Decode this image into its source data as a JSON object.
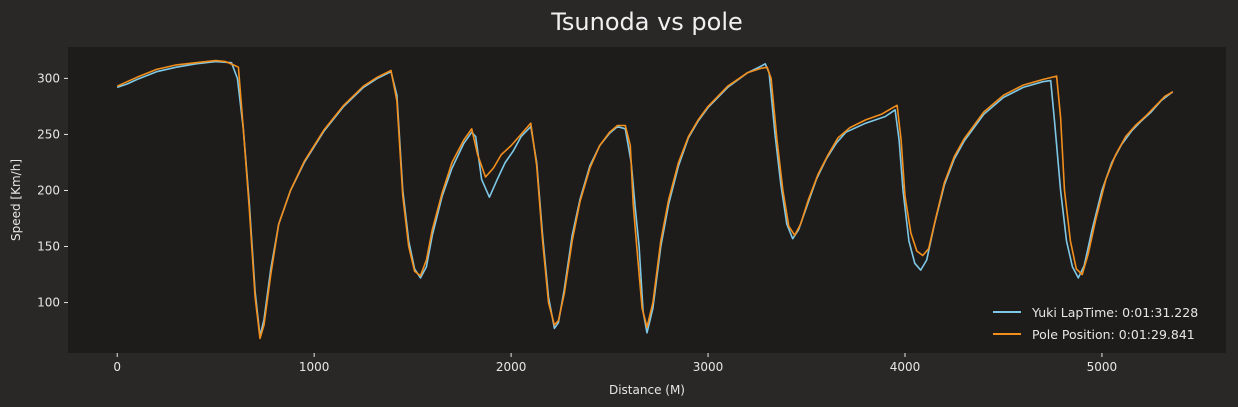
{
  "colors": {
    "figure_bg": "#2a2727",
    "plot_bg": "#1e1c1b",
    "text": "#e6e6e6",
    "yuki": "#7ec8e6",
    "pole": "#f28e1c"
  },
  "chart_data": {
    "type": "line",
    "title": "Tsunoda vs pole",
    "xlabel": "Distance (M)",
    "ylabel": "Speed [Km/h]",
    "xlim": [
      -250,
      5630
    ],
    "ylim": [
      55,
      328
    ],
    "xticks": [
      0,
      1000,
      2000,
      3000,
      4000,
      5000
    ],
    "yticks": [
      100,
      150,
      200,
      250,
      300
    ],
    "grid": false,
    "legend_position": "lower-right",
    "series": [
      {
        "name": "Yuki LapTime: 0:01:31.228",
        "color_key": "yuki",
        "points": [
          [
            0,
            292
          ],
          [
            50,
            295
          ],
          [
            100,
            299
          ],
          [
            200,
            306
          ],
          [
            300,
            310
          ],
          [
            400,
            313
          ],
          [
            500,
            315
          ],
          [
            580,
            314
          ],
          [
            610,
            300
          ],
          [
            640,
            255
          ],
          [
            670,
            190
          ],
          [
            700,
            110
          ],
          [
            725,
            70
          ],
          [
            745,
            85
          ],
          [
            780,
            130
          ],
          [
            820,
            170
          ],
          [
            880,
            200
          ],
          [
            950,
            225
          ],
          [
            1050,
            253
          ],
          [
            1150,
            275
          ],
          [
            1250,
            292
          ],
          [
            1320,
            300
          ],
          [
            1390,
            306
          ],
          [
            1420,
            285
          ],
          [
            1450,
            200
          ],
          [
            1480,
            155
          ],
          [
            1510,
            130
          ],
          [
            1540,
            122
          ],
          [
            1570,
            132
          ],
          [
            1600,
            160
          ],
          [
            1650,
            195
          ],
          [
            1700,
            220
          ],
          [
            1760,
            242
          ],
          [
            1800,
            252
          ],
          [
            1820,
            248
          ],
          [
            1850,
            210
          ],
          [
            1890,
            194
          ],
          [
            1930,
            210
          ],
          [
            1970,
            225
          ],
          [
            2010,
            235
          ],
          [
            2050,
            248
          ],
          [
            2100,
            257
          ],
          [
            2130,
            225
          ],
          [
            2160,
            160
          ],
          [
            2190,
            105
          ],
          [
            2220,
            77
          ],
          [
            2240,
            82
          ],
          [
            2270,
            112
          ],
          [
            2310,
            160
          ],
          [
            2350,
            192
          ],
          [
            2400,
            222
          ],
          [
            2450,
            240
          ],
          [
            2500,
            251
          ],
          [
            2540,
            257
          ],
          [
            2580,
            255
          ],
          [
            2610,
            225
          ],
          [
            2630,
            185
          ],
          [
            2650,
            150
          ],
          [
            2670,
            92
          ],
          [
            2690,
            73
          ],
          [
            2720,
            95
          ],
          [
            2760,
            150
          ],
          [
            2800,
            188
          ],
          [
            2850,
            222
          ],
          [
            2900,
            247
          ],
          [
            2950,
            262
          ],
          [
            3000,
            274
          ],
          [
            3100,
            292
          ],
          [
            3200,
            305
          ],
          [
            3270,
            311
          ],
          [
            3290,
            313
          ],
          [
            3310,
            305
          ],
          [
            3340,
            250
          ],
          [
            3370,
            205
          ],
          [
            3400,
            170
          ],
          [
            3430,
            157
          ],
          [
            3460,
            165
          ],
          [
            3500,
            185
          ],
          [
            3550,
            210
          ],
          [
            3600,
            228
          ],
          [
            3650,
            242
          ],
          [
            3700,
            252
          ],
          [
            3800,
            260
          ],
          [
            3900,
            266
          ],
          [
            3950,
            272
          ],
          [
            3970,
            245
          ],
          [
            3990,
            200
          ],
          [
            4020,
            155
          ],
          [
            4050,
            135
          ],
          [
            4080,
            129
          ],
          [
            4110,
            138
          ],
          [
            4150,
            170
          ],
          [
            4200,
            205
          ],
          [
            4250,
            228
          ],
          [
            4300,
            244
          ],
          [
            4400,
            268
          ],
          [
            4500,
            283
          ],
          [
            4600,
            292
          ],
          [
            4700,
            297
          ],
          [
            4740,
            298
          ],
          [
            4760,
            260
          ],
          [
            4790,
            200
          ],
          [
            4820,
            155
          ],
          [
            4850,
            132
          ],
          [
            4880,
            122
          ],
          [
            4910,
            133
          ],
          [
            4950,
            165
          ],
          [
            5000,
            200
          ],
          [
            5050,
            225
          ],
          [
            5100,
            241
          ],
          [
            5150,
            253
          ],
          [
            5200,
            262
          ],
          [
            5250,
            270
          ],
          [
            5300,
            280
          ],
          [
            5360,
            288
          ]
        ]
      },
      {
        "name": "Pole Position: 0:01:29.841",
        "color_key": "pole",
        "points": [
          [
            0,
            293
          ],
          [
            50,
            297
          ],
          [
            100,
            301
          ],
          [
            200,
            308
          ],
          [
            300,
            312
          ],
          [
            400,
            314
          ],
          [
            500,
            316
          ],
          [
            550,
            315
          ],
          [
            590,
            312
          ],
          [
            615,
            310
          ],
          [
            640,
            255
          ],
          [
            670,
            185
          ],
          [
            700,
            105
          ],
          [
            725,
            68
          ],
          [
            745,
            80
          ],
          [
            780,
            125
          ],
          [
            820,
            170
          ],
          [
            880,
            200
          ],
          [
            950,
            226
          ],
          [
            1050,
            254
          ],
          [
            1150,
            276
          ],
          [
            1250,
            293
          ],
          [
            1320,
            301
          ],
          [
            1390,
            307
          ],
          [
            1420,
            280
          ],
          [
            1450,
            195
          ],
          [
            1480,
            150
          ],
          [
            1510,
            128
          ],
          [
            1540,
            124
          ],
          [
            1570,
            138
          ],
          [
            1600,
            165
          ],
          [
            1650,
            198
          ],
          [
            1700,
            225
          ],
          [
            1760,
            245
          ],
          [
            1800,
            255
          ],
          [
            1830,
            232
          ],
          [
            1870,
            212
          ],
          [
            1910,
            220
          ],
          [
            1950,
            232
          ],
          [
            2000,
            240
          ],
          [
            2050,
            250
          ],
          [
            2100,
            260
          ],
          [
            2130,
            222
          ],
          [
            2160,
            155
          ],
          [
            2190,
            100
          ],
          [
            2220,
            80
          ],
          [
            2240,
            84
          ],
          [
            2270,
            108
          ],
          [
            2310,
            155
          ],
          [
            2350,
            190
          ],
          [
            2400,
            220
          ],
          [
            2450,
            240
          ],
          [
            2500,
            252
          ],
          [
            2540,
            258
          ],
          [
            2580,
            258
          ],
          [
            2605,
            240
          ],
          [
            2620,
            188
          ],
          [
            2640,
            145
          ],
          [
            2665,
            95
          ],
          [
            2690,
            78
          ],
          [
            2720,
            100
          ],
          [
            2760,
            155
          ],
          [
            2800,
            192
          ],
          [
            2850,
            225
          ],
          [
            2900,
            248
          ],
          [
            2950,
            263
          ],
          [
            3000,
            275
          ],
          [
            3100,
            293
          ],
          [
            3200,
            305
          ],
          [
            3270,
            309
          ],
          [
            3300,
            310
          ],
          [
            3320,
            300
          ],
          [
            3350,
            245
          ],
          [
            3380,
            200
          ],
          [
            3410,
            168
          ],
          [
            3440,
            160
          ],
          [
            3470,
            170
          ],
          [
            3510,
            192
          ],
          [
            3560,
            215
          ],
          [
            3610,
            232
          ],
          [
            3660,
            247
          ],
          [
            3720,
            256
          ],
          [
            3800,
            263
          ],
          [
            3880,
            268
          ],
          [
            3930,
            273
          ],
          [
            3960,
            276
          ],
          [
            3980,
            245
          ],
          [
            4000,
            195
          ],
          [
            4030,
            162
          ],
          [
            4060,
            146
          ],
          [
            4090,
            142
          ],
          [
            4120,
            148
          ],
          [
            4160,
            178
          ],
          [
            4200,
            207
          ],
          [
            4250,
            230
          ],
          [
            4300,
            246
          ],
          [
            4400,
            270
          ],
          [
            4500,
            285
          ],
          [
            4600,
            294
          ],
          [
            4700,
            299
          ],
          [
            4770,
            302
          ],
          [
            4790,
            265
          ],
          [
            4810,
            200
          ],
          [
            4840,
            155
          ],
          [
            4870,
            130
          ],
          [
            4900,
            125
          ],
          [
            4930,
            143
          ],
          [
            4970,
            175
          ],
          [
            5020,
            210
          ],
          [
            5070,
            232
          ],
          [
            5120,
            248
          ],
          [
            5170,
            258
          ],
          [
            5220,
            266
          ],
          [
            5270,
            275
          ],
          [
            5320,
            284
          ],
          [
            5360,
            288
          ]
        ]
      }
    ]
  }
}
